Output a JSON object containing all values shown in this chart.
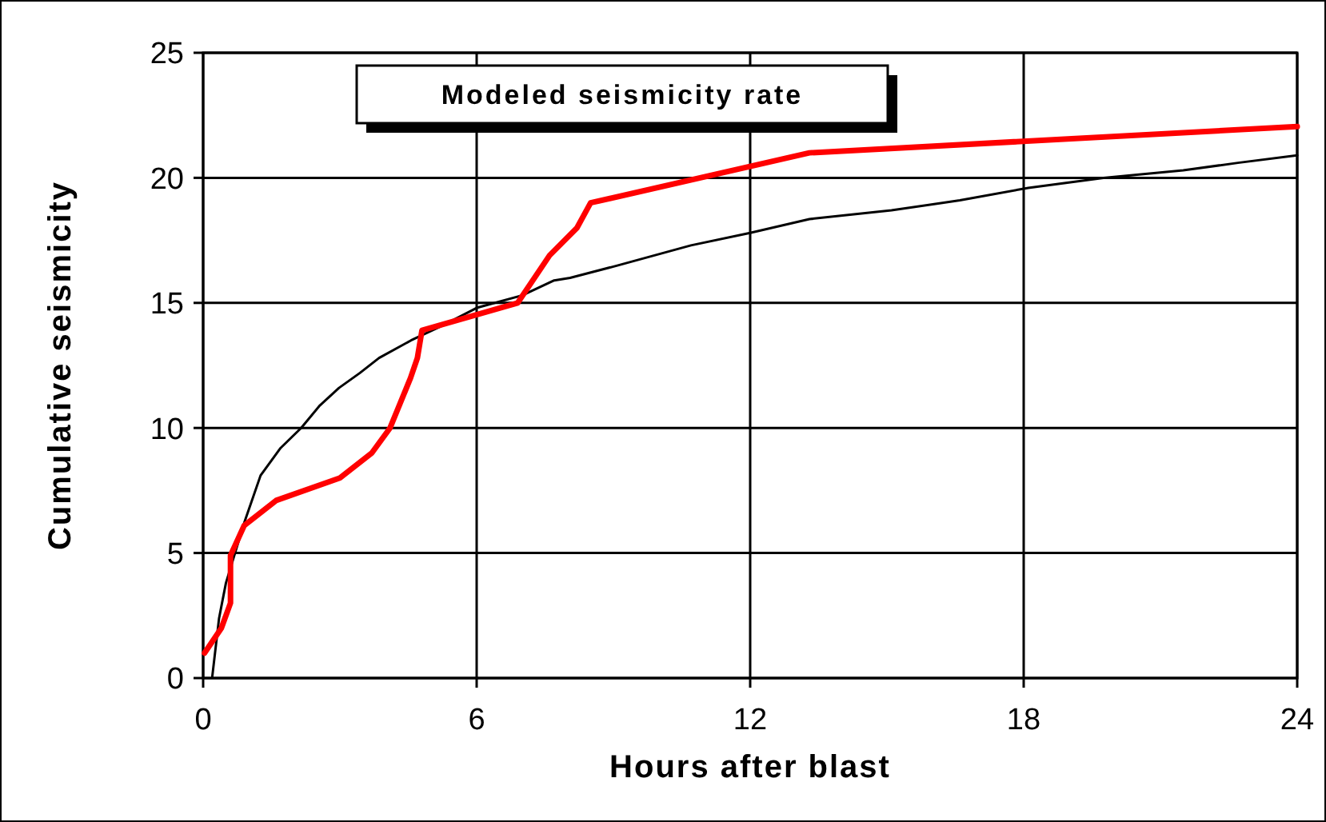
{
  "chart_data": {
    "type": "line",
    "xlabel": "Hours after blast",
    "ylabel": "Cumulative seismicity",
    "annotations": [
      "Modeled seismicity rate"
    ],
    "xlim": [
      0,
      24
    ],
    "xticks": [
      0,
      6,
      12,
      18,
      24
    ],
    "ylim": [
      0,
      25
    ],
    "yticks": [
      0,
      5,
      10,
      15,
      20,
      25
    ],
    "grid": true,
    "marker": "none",
    "line_style": "solid",
    "series": [
      {
        "color": "#000000",
        "x": [
          0.2,
          0.35,
          0.5,
          0.9,
          1.26,
          1.7,
          2.15,
          2.56,
          2.98,
          3.44,
          3.86,
          4.56,
          5.26,
          6.0,
          7.0,
          7.7,
          8.05,
          9.1,
          10.7,
          12.0,
          13.3,
          15.1,
          16.6,
          18.1,
          19.75,
          21.5,
          22.7,
          24.0
        ],
        "values": [
          0.05,
          2.4,
          3.8,
          6.2,
          8.1,
          9.2,
          10.0,
          10.9,
          11.6,
          12.2,
          12.8,
          13.5,
          14.1,
          14.8,
          15.3,
          15.9,
          16.0,
          16.5,
          17.3,
          17.8,
          18.35,
          18.7,
          19.1,
          19.6,
          20.0,
          20.3,
          20.6,
          20.9
        ]
      },
      {
        "color": "#ff0000",
        "x": [
          0.03,
          0.4,
          0.6,
          0.6,
          0.9,
          1.6,
          3.0,
          3.7,
          4.1,
          4.55,
          4.7,
          4.8,
          6.9,
          7.6,
          8.2,
          8.5,
          13.3,
          24.0
        ],
        "values": [
          1.0,
          2.0,
          3.0,
          4.9,
          6.1,
          7.1,
          8.0,
          9.0,
          10.0,
          12.0,
          12.8,
          13.9,
          15.0,
          16.9,
          18.0,
          19.0,
          21.0,
          22.05
        ]
      }
    ]
  }
}
